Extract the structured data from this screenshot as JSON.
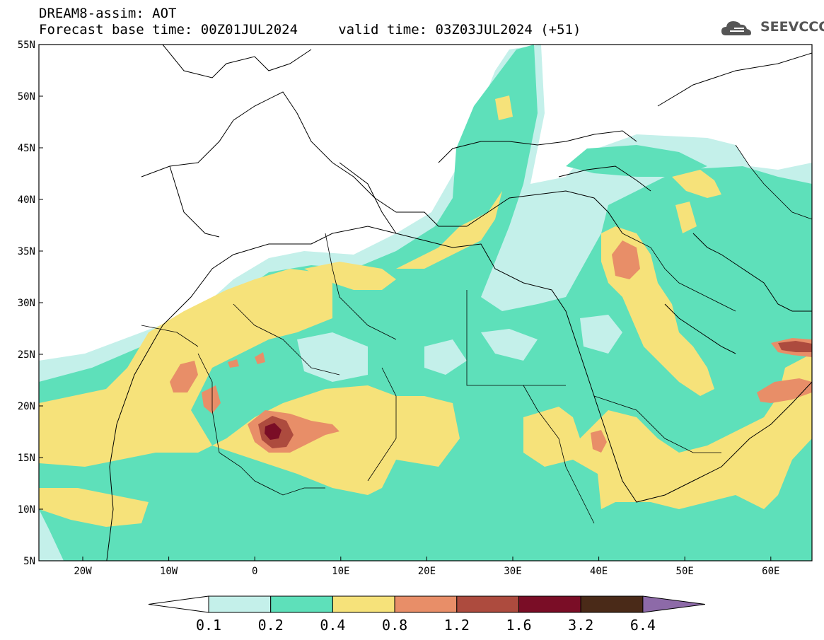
{
  "header": {
    "title": "DREAM8-assim: AOT",
    "forecast_line": "Forecast base time: 00Z01JUL2024     valid time: 03Z03JUL2024 (+51)"
  },
  "logo": {
    "text": "SEEVCCC",
    "icon": "cloud-icon"
  },
  "map": {
    "lat_labels": [
      "55N",
      "50N",
      "45N",
      "40N",
      "35N",
      "30N",
      "25N",
      "20N",
      "15N",
      "10N",
      "5N"
    ],
    "lon_labels": [
      "20W",
      "10W",
      "0",
      "10E",
      "20E",
      "30E",
      "40E",
      "50E",
      "60E"
    ]
  },
  "colorbar": {
    "labels": [
      "0.1",
      "0.2",
      "0.4",
      "0.8",
      "1.2",
      "1.6",
      "3.2",
      "6.4"
    ],
    "colors": [
      "#c4f0ea",
      "#5ee0ba",
      "#f6e27a",
      "#e88e68",
      "#ad4b3e",
      "#7a0d26",
      "#4a2a18",
      "#8d6aa8"
    ]
  },
  "palette": {
    "c01": "#c4f0ea",
    "c02": "#5ee0ba",
    "c04": "#f6e27a",
    "c08": "#e88e68",
    "c12": "#ad4b3e",
    "c16": "#7a0d26"
  }
}
